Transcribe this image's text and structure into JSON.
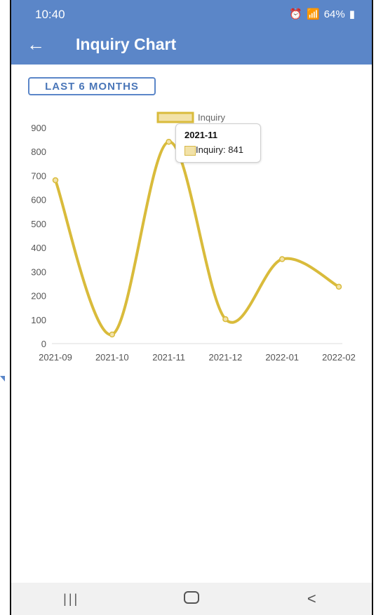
{
  "status_bar": {
    "time": "10:40",
    "icons": [
      "alarm-icon",
      "wifi-icon",
      "signal-icon",
      "signal-icon"
    ],
    "battery": "64%"
  },
  "app_bar": {
    "back_glyph": "←",
    "title": "Inquiry Chart"
  },
  "filter": {
    "range_label": "LAST 6 MONTHS"
  },
  "colors": {
    "accent": "#5b86c8",
    "series_line": "#d9bb3b",
    "series_fill": "#f2e2a8"
  },
  "chart_data": {
    "type": "line",
    "title": "",
    "xlabel": "",
    "ylabel": "",
    "categories": [
      "2021-09",
      "2021-10",
      "2021-11",
      "2021-12",
      "2022-01",
      "2022-02"
    ],
    "series": [
      {
        "name": "Inquiry",
        "values": [
          681,
          38,
          841,
          102,
          352,
          237
        ]
      }
    ],
    "ylim": [
      0,
      900
    ],
    "yticks": [
      0,
      100,
      200,
      300,
      400,
      500,
      600,
      700,
      800,
      900
    ],
    "grid": false,
    "legend_position": "top-center",
    "tooltip": {
      "title": "2021-11",
      "label": "Inquiry: ",
      "value": "841"
    }
  },
  "nav_bar": {
    "recent": "|||",
    "home": "",
    "back": "<"
  }
}
